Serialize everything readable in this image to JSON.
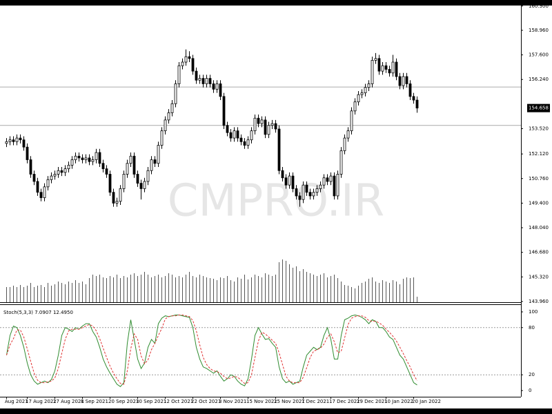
{
  "chart_data": {
    "type": "candlestick",
    "watermark": "CMPRO.IR",
    "categories": [
      "Aug 2021",
      null,
      null,
      null,
      null,
      null,
      "17 Aug 2021",
      null,
      null,
      null,
      null,
      null,
      null,
      null,
      "27 Aug 2021",
      null,
      null,
      null,
      null,
      null,
      null,
      null,
      "8 Sep 2021",
      null,
      null,
      null,
      null,
      null,
      null,
      null,
      "20 Sep 2021",
      null,
      null,
      null,
      null,
      null,
      null,
      null,
      "30 Sep 2021",
      null,
      null,
      null,
      null,
      null,
      null,
      null,
      "12 Oct 2021",
      null,
      null,
      null,
      null,
      null,
      null,
      null,
      "22 Oct 2021",
      null,
      null,
      null,
      null,
      null,
      null,
      null,
      "3 Nov 2021",
      null,
      null,
      null,
      null,
      null,
      null,
      null,
      "15 Nov 2021",
      null,
      null,
      null,
      null,
      null,
      null,
      null,
      "25 Nov 2021",
      null,
      null,
      null,
      null,
      null,
      null,
      null,
      "7 Dec 2021",
      null,
      null,
      null,
      null,
      null,
      null,
      null,
      "17 Dec 2021",
      null,
      null,
      null,
      null,
      null,
      null,
      null,
      "29 Dec 2021",
      null,
      null,
      null,
      null,
      null,
      null,
      null,
      "10 Jan 2022",
      null,
      null,
      null,
      null,
      null,
      null,
      null,
      "20 Jan 2022",
      null
    ],
    "open": [
      152.7,
      152.8,
      152.9,
      152.8,
      153.0,
      152.9,
      152.5,
      151.8,
      151.0,
      150.6,
      150.0,
      149.7,
      150.3,
      150.7,
      150.9,
      151.0,
      151.2,
      151.1,
      151.3,
      151.5,
      151.8,
      152.0,
      151.9,
      151.8,
      151.9,
      151.7,
      151.8,
      152.2,
      151.6,
      151.3,
      151.0,
      150.0,
      149.4,
      149.5,
      150.2,
      151.0,
      151.6,
      152.0,
      151.0,
      150.5,
      150.2,
      150.6,
      151.2,
      151.8,
      151.6,
      152.6,
      153.4,
      154.0,
      154.4,
      154.9,
      156.0,
      157.0,
      157.2,
      157.5,
      157.4,
      156.7,
      156.2,
      156.3,
      156.0,
      156.3,
      156.0,
      155.7,
      156.0,
      155.3,
      153.7,
      153.3,
      153.0,
      153.4,
      153.0,
      152.8,
      152.6,
      152.9,
      153.4,
      154.1,
      153.8,
      154.0,
      153.2,
      153.7,
      153.8,
      153.5,
      151.2,
      150.8,
      150.4,
      150.9,
      150.2,
      149.8,
      149.6,
      150.4,
      150.0,
      149.8,
      150.0,
      150.2,
      150.4,
      150.8,
      150.6,
      150.9,
      149.8,
      151.0,
      152.3,
      153.0,
      153.4,
      154.5,
      155.0,
      155.4,
      155.5,
      155.8,
      156.0,
      157.3,
      157.4,
      156.7,
      157.0,
      156.8,
      156.6,
      157.2,
      156.4,
      155.9,
      156.4,
      156.0,
      155.3,
      155.1
    ],
    "high": [
      153.0,
      153.1,
      153.1,
      153.2,
      153.2,
      153.1,
      152.7,
      152.0,
      151.2,
      150.8,
      150.2,
      150.5,
      150.9,
      151.1,
      151.2,
      151.4,
      151.4,
      151.5,
      151.7,
      152.0,
      152.2,
      152.2,
      152.1,
      152.1,
      152.1,
      152.0,
      152.4,
      152.4,
      151.8,
      151.5,
      151.2,
      150.2,
      149.7,
      150.4,
      151.2,
      151.8,
      152.2,
      152.2,
      151.2,
      150.7,
      150.8,
      151.4,
      152.0,
      152.0,
      152.8,
      153.6,
      154.2,
      154.6,
      155.1,
      156.2,
      157.2,
      157.4,
      157.9,
      157.8,
      157.6,
      156.9,
      156.5,
      156.5,
      156.5,
      156.5,
      156.2,
      156.2,
      156.2,
      155.5,
      153.9,
      153.5,
      153.6,
      153.6,
      153.2,
      153.0,
      153.1,
      153.6,
      154.3,
      154.3,
      154.2,
      154.2,
      153.9,
      154.0,
      154.0,
      153.7,
      151.4,
      151.0,
      151.1,
      151.1,
      150.4,
      150.0,
      150.6,
      150.6,
      150.2,
      150.2,
      150.4,
      150.6,
      151.0,
      151.0,
      151.1,
      151.1,
      151.2,
      152.5,
      153.2,
      153.6,
      154.7,
      155.2,
      155.6,
      155.7,
      156.0,
      156.2,
      157.5,
      157.7,
      157.6,
      157.2,
      157.2,
      157.0,
      157.6,
      157.4,
      156.6,
      156.6,
      156.6,
      156.2,
      155.5,
      155.3
    ],
    "low": [
      152.5,
      152.6,
      152.6,
      152.6,
      152.7,
      152.3,
      151.6,
      150.8,
      150.4,
      149.8,
      149.5,
      149.5,
      150.1,
      150.5,
      150.7,
      150.8,
      150.9,
      150.9,
      151.1,
      151.3,
      151.6,
      151.7,
      151.6,
      151.6,
      151.5,
      151.5,
      151.6,
      151.4,
      151.1,
      150.8,
      149.8,
      149.2,
      149.2,
      149.3,
      150.0,
      150.8,
      151.4,
      150.8,
      150.3,
      149.6,
      150.0,
      150.4,
      151.0,
      151.4,
      151.4,
      152.4,
      153.2,
      153.8,
      154.2,
      154.7,
      155.8,
      156.8,
      157.0,
      157.2,
      156.5,
      156.0,
      156.0,
      155.8,
      155.8,
      155.8,
      155.5,
      155.5,
      155.1,
      153.5,
      153.1,
      152.8,
      152.8,
      152.8,
      152.6,
      152.4,
      152.4,
      152.7,
      153.2,
      153.6,
      153.6,
      153.0,
      153.0,
      153.5,
      153.3,
      151.0,
      150.6,
      150.2,
      150.2,
      150.0,
      149.6,
      149.2,
      149.4,
      149.8,
      149.6,
      149.6,
      149.8,
      150.0,
      150.2,
      150.4,
      150.4,
      149.6,
      149.6,
      150.8,
      152.1,
      152.8,
      153.2,
      154.3,
      154.8,
      155.2,
      155.3,
      155.6,
      155.8,
      157.1,
      156.5,
      156.5,
      156.6,
      156.4,
      156.4,
      156.2,
      155.7,
      155.7,
      155.8,
      155.1,
      154.9,
      154.4
    ],
    "close": [
      152.8,
      152.9,
      152.8,
      153.0,
      152.9,
      152.5,
      151.8,
      151.0,
      150.6,
      150.0,
      149.7,
      150.3,
      150.7,
      150.9,
      151.0,
      151.2,
      151.1,
      151.3,
      151.5,
      151.8,
      152.0,
      151.9,
      151.8,
      151.9,
      151.7,
      151.8,
      152.2,
      151.6,
      151.3,
      151.0,
      150.0,
      149.4,
      149.5,
      150.2,
      151.0,
      151.6,
      152.0,
      151.0,
      150.5,
      150.2,
      150.6,
      151.2,
      151.8,
      151.6,
      152.6,
      153.4,
      154.0,
      154.4,
      154.9,
      156.0,
      157.0,
      157.2,
      157.5,
      157.4,
      156.7,
      156.2,
      156.3,
      156.0,
      156.3,
      156.0,
      155.7,
      156.0,
      155.3,
      153.7,
      153.3,
      153.0,
      153.4,
      153.0,
      152.8,
      152.6,
      152.9,
      153.4,
      154.1,
      153.8,
      154.0,
      153.2,
      153.7,
      153.8,
      153.5,
      151.2,
      150.8,
      150.4,
      150.9,
      150.2,
      149.8,
      149.6,
      150.4,
      150.0,
      149.8,
      150.0,
      150.2,
      150.4,
      150.8,
      150.6,
      150.9,
      149.8,
      151.0,
      152.3,
      153.0,
      153.4,
      154.5,
      155.0,
      155.4,
      155.5,
      155.8,
      156.0,
      157.3,
      157.4,
      156.7,
      157.0,
      156.8,
      156.6,
      157.2,
      156.4,
      155.9,
      156.4,
      156.0,
      155.3,
      155.1,
      154.658
    ],
    "up_color": "#ffffff",
    "down_color": "#000000",
    "ylim": [
      143.92,
      160.33
    ],
    "yticks": [
      {
        "value": 143.96,
        "label": "143.960"
      },
      {
        "value": 145.32,
        "label": "145.320"
      },
      {
        "value": 146.68,
        "label": "146.680"
      },
      {
        "value": 148.04,
        "label": "148.040"
      },
      {
        "value": 149.4,
        "label": "149.400"
      },
      {
        "value": 150.76,
        "label": "150.760"
      },
      {
        "value": 152.12,
        "label": "152.120"
      },
      {
        "value": 153.52,
        "label": "153.520"
      },
      {
        "value": 156.24,
        "label": "156.240"
      },
      {
        "value": 157.6,
        "label": "157.600"
      },
      {
        "value": 158.96,
        "label": "158.960"
      },
      {
        "value": 160.3,
        "label": "160.300"
      }
    ],
    "hlines": [
      155.82,
      153.7
    ],
    "last_price": 154.658,
    "volume": [
      22,
      22,
      24,
      22,
      25,
      22,
      24,
      28,
      22,
      24,
      25,
      22,
      28,
      24,
      26,
      30,
      28,
      26,
      30,
      28,
      32,
      28,
      30,
      26,
      35,
      40,
      38,
      40,
      36,
      35,
      38,
      36,
      40,
      35,
      38,
      36,
      40,
      42,
      38,
      40,
      44,
      40,
      36,
      38,
      40,
      36,
      38,
      42,
      40,
      36,
      38,
      36,
      40,
      44,
      38,
      36,
      40,
      38,
      36,
      35,
      34,
      32,
      36,
      35,
      38,
      32,
      30,
      36,
      34,
      40,
      33,
      36,
      40,
      38,
      36,
      42,
      40,
      38,
      40,
      58,
      62,
      60,
      55,
      50,
      52,
      45,
      48,
      44,
      42,
      40,
      38,
      40,
      42,
      36,
      38,
      40,
      35,
      30,
      25,
      24,
      22,
      20,
      24,
      28,
      30,
      34,
      36,
      30,
      28,
      32,
      30,
      28,
      32,
      30,
      26,
      34,
      36,
      35,
      36,
      8
    ],
    "indicator": {
      "title": "Stoch(5,3,3) 7.0907 12.4950",
      "ylim": [
        0,
        100
      ],
      "yticks": [
        0,
        20,
        80,
        100
      ],
      "levels": [
        20,
        80
      ],
      "k_color": "#2e8b2e",
      "d_color": "#e03030",
      "k": [
        45,
        70,
        82,
        80,
        70,
        55,
        35,
        20,
        12,
        8,
        10,
        12,
        10,
        14,
        25,
        45,
        70,
        80,
        78,
        75,
        80,
        78,
        82,
        85,
        85,
        75,
        68,
        55,
        40,
        30,
        22,
        15,
        8,
        5,
        10,
        60,
        90,
        65,
        40,
        28,
        35,
        55,
        65,
        60,
        85,
        92,
        95,
        94,
        95,
        96,
        96,
        95,
        94,
        93,
        80,
        55,
        40,
        30,
        28,
        25,
        22,
        25,
        18,
        12,
        15,
        20,
        18,
        12,
        8,
        6,
        15,
        40,
        70,
        80,
        72,
        65,
        66,
        60,
        55,
        30,
        15,
        10,
        12,
        8,
        10,
        12,
        30,
        45,
        50,
        55,
        52,
        55,
        70,
        80,
        65,
        40,
        40,
        70,
        90,
        92,
        95,
        96,
        95,
        93,
        90,
        85,
        90,
        88,
        80,
        80,
        75,
        68,
        65,
        55,
        45,
        40,
        30,
        20,
        10,
        7.0907
      ],
      "d": [
        45,
        58,
        66,
        77,
        77,
        68,
        53,
        37,
        22,
        13,
        10,
        10,
        11,
        12,
        16,
        28,
        47,
        65,
        76,
        78,
        78,
        78,
        80,
        82,
        84,
        82,
        76,
        66,
        54,
        42,
        31,
        22,
        15,
        9,
        8,
        25,
        53,
        72,
        65,
        44,
        34,
        39,
        52,
        60,
        70,
        79,
        91,
        94,
        95,
        95,
        96,
        96,
        95,
        94,
        89,
        76,
        58,
        42,
        33,
        28,
        25,
        24,
        22,
        18,
        15,
        16,
        18,
        17,
        13,
        9,
        10,
        20,
        42,
        63,
        74,
        72,
        68,
        64,
        60,
        48,
        33,
        18,
        12,
        10,
        10,
        10,
        17,
        29,
        42,
        50,
        52,
        54,
        59,
        68,
        72,
        62,
        48,
        50,
        67,
        84,
        92,
        94,
        95,
        95,
        93,
        89,
        88,
        88,
        86,
        83,
        78,
        74,
        69,
        63,
        55,
        47,
        38,
        30,
        20,
        12.495
      ]
    }
  }
}
